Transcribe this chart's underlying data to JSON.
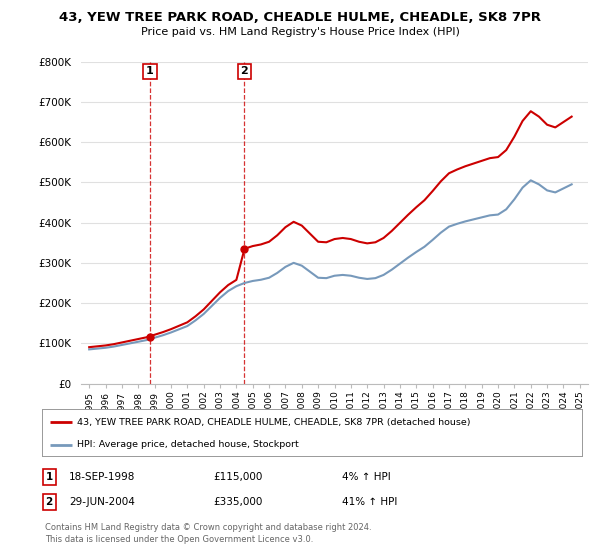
{
  "title": "43, YEW TREE PARK ROAD, CHEADLE HULME, CHEADLE, SK8 7PR",
  "subtitle": "Price paid vs. HM Land Registry's House Price Index (HPI)",
  "ylim": [
    0,
    800000
  ],
  "yticks": [
    0,
    100000,
    200000,
    300000,
    400000,
    500000,
    600000,
    700000,
    800000
  ],
  "sale1_yr": 1998.72,
  "sale1_price": 115000,
  "sale2_yr": 2004.49,
  "sale2_price": 335000,
  "legend_property": "43, YEW TREE PARK ROAD, CHEADLE HULME, CHEADLE, SK8 7PR (detached house)",
  "legend_hpi": "HPI: Average price, detached house, Stockport",
  "footnote": "Contains HM Land Registry data © Crown copyright and database right 2024.\nThis data is licensed under the Open Government Licence v3.0.",
  "property_line_color": "#cc0000",
  "hpi_line_color": "#7799bb",
  "vline_color": "#cc0000",
  "background_color": "#ffffff",
  "grid_color": "#e0e0e0",
  "sale_marker_color": "#cc0000",
  "box_color": "#cc0000",
  "hpi_years": [
    1995.0,
    1995.5,
    1996.0,
    1996.5,
    1997.0,
    1997.5,
    1998.0,
    1998.5,
    1999.0,
    1999.5,
    2000.0,
    2000.5,
    2001.0,
    2001.5,
    2002.0,
    2002.5,
    2003.0,
    2003.5,
    2004.0,
    2004.5,
    2005.0,
    2005.5,
    2006.0,
    2006.5,
    2007.0,
    2007.5,
    2008.0,
    2008.5,
    2009.0,
    2009.5,
    2010.0,
    2010.5,
    2011.0,
    2011.5,
    2012.0,
    2012.5,
    2013.0,
    2013.5,
    2014.0,
    2014.5,
    2015.0,
    2015.5,
    2016.0,
    2016.5,
    2017.0,
    2017.5,
    2018.0,
    2018.5,
    2019.0,
    2019.5,
    2020.0,
    2020.5,
    2021.0,
    2021.5,
    2022.0,
    2022.5,
    2023.0,
    2023.5,
    2024.0,
    2024.5
  ],
  "hpi_values": [
    85000,
    87000,
    89000,
    92000,
    96000,
    100000,
    104000,
    108000,
    114000,
    120000,
    127000,
    135000,
    143000,
    157000,
    173000,
    193000,
    213000,
    230000,
    242000,
    250000,
    255000,
    258000,
    263000,
    275000,
    290000,
    300000,
    293000,
    278000,
    263000,
    262000,
    268000,
    270000,
    268000,
    263000,
    260000,
    262000,
    270000,
    283000,
    298000,
    313000,
    327000,
    340000,
    357000,
    375000,
    390000,
    397000,
    403000,
    408000,
    413000,
    418000,
    420000,
    433000,
    458000,
    487000,
    505000,
    495000,
    480000,
    475000,
    485000,
    495000
  ],
  "note1_date": "18-SEP-1998",
  "note1_price": "£115,000",
  "note1_hpi": "4% ↑ HPI",
  "note2_date": "29-JUN-2004",
  "note2_price": "£335,000",
  "note2_hpi": "41% ↑ HPI"
}
